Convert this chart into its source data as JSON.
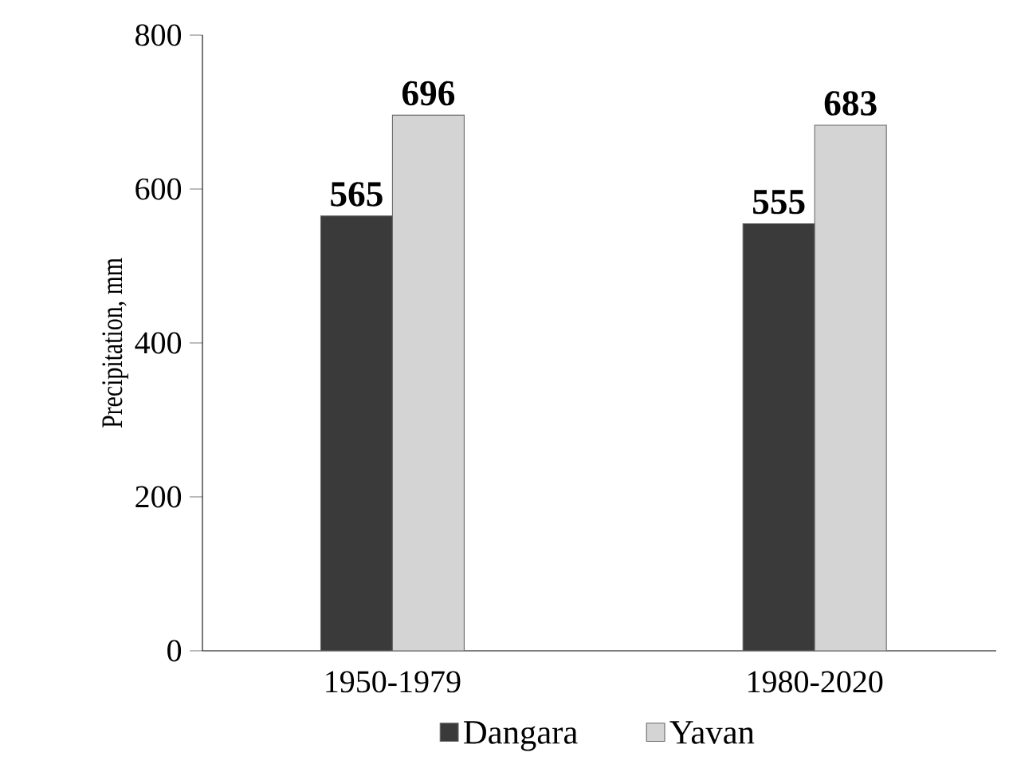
{
  "chart_data": {
    "type": "bar",
    "ylabel": "Precipitation, mm",
    "categories": [
      "1950-1979",
      "1980-2020"
    ],
    "series": [
      {
        "name": "Dangara",
        "color": "#3a3a3a",
        "values": [
          565,
          555
        ]
      },
      {
        "name": "Yavan",
        "color": "#d4d4d4",
        "values": [
          696,
          683
        ]
      }
    ],
    "ylim": [
      0,
      800
    ],
    "yticks": [
      0,
      200,
      400,
      600,
      800
    ],
    "grid": false,
    "legend": "bottom",
    "data_labels": true
  }
}
